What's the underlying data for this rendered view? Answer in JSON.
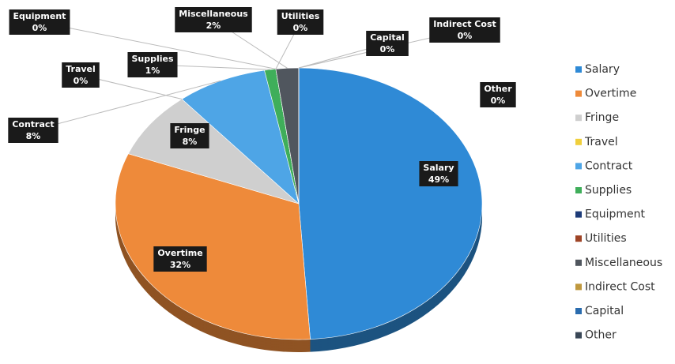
{
  "chart_data": {
    "type": "pie",
    "categories": [
      "Salary",
      "Overtime",
      "Fringe",
      "Travel",
      "Contract",
      "Supplies",
      "Equipment",
      "Utilities",
      "Miscellaneous",
      "Indirect Cost",
      "Capital",
      "Other"
    ],
    "values": [
      49,
      32,
      8,
      0,
      8,
      1,
      0,
      0,
      2,
      0,
      0,
      0
    ],
    "value_labels": [
      "49%",
      "32%",
      "8%",
      "0%",
      "8%",
      "1%",
      "0%",
      "0%",
      "2%",
      "0%",
      "0%",
      "0%"
    ],
    "colors": [
      "#2f8ad6",
      "#ee8a3a",
      "#cfcfcf",
      "#f0cf3c",
      "#4ea5e6",
      "#3fae5a",
      "#1d3b78",
      "#9e4426",
      "#50565e",
      "#bf983e",
      "#2a6cae",
      "#3a4756"
    ],
    "legend": "right"
  }
}
